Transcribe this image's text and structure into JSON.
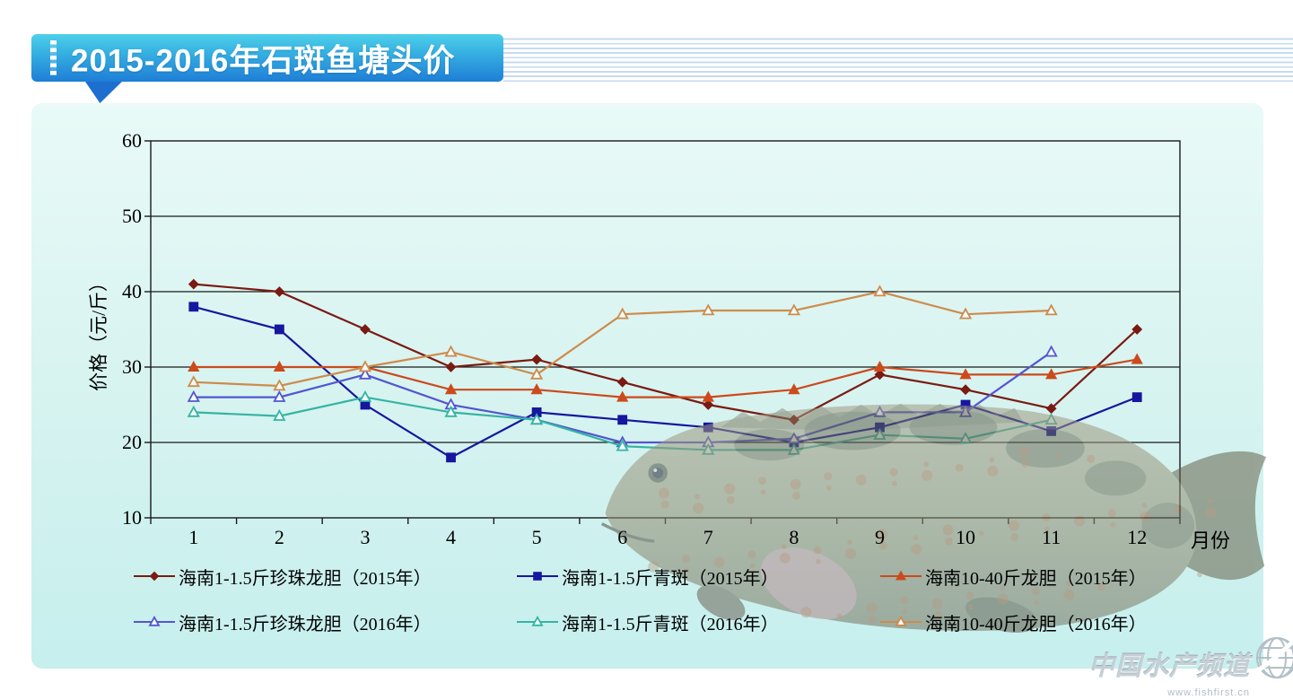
{
  "header": {
    "title": "2015-2016年石斑鱼塘头价"
  },
  "watermark": {
    "brand": "中国水产频道",
    "url": "www.fishfirst.cn"
  },
  "colors": {
    "banner_top": "#4fd0ea",
    "banner_bottom": "#1e7ed6",
    "panel_bg": "#d9f4f1",
    "series_2015_pearl": "#7a1a12",
    "series_2015_green": "#16169e",
    "series_2015_giant": "#cc4a1c",
    "series_2016_pearl": "#5356cf",
    "series_2016_green": "#35b4a4",
    "series_2016_giant": "#ce8b4c"
  },
  "chart_data": {
    "type": "line",
    "title": "",
    "xlabel": "月份",
    "ylabel": "价格（元/斤）",
    "x": [
      1,
      2,
      3,
      4,
      5,
      6,
      7,
      8,
      9,
      10,
      11,
      12
    ],
    "xlim": [
      0,
      12
    ],
    "ylim": [
      10,
      60
    ],
    "yticks": [
      10,
      20,
      30,
      40,
      50,
      60
    ],
    "grid": true,
    "legend_position": "bottom",
    "series": [
      {
        "name": "海南1-1.5斤珍珠龙胆（2015年）",
        "color": "#7a1a12",
        "marker": "diamond",
        "filled": true,
        "values": [
          41,
          40,
          35,
          30,
          31,
          28,
          25,
          23,
          29,
          27,
          24.5,
          35
        ]
      },
      {
        "name": "海南1-1.5斤青斑（2015年）",
        "color": "#16169e",
        "marker": "square",
        "filled": true,
        "values": [
          38,
          35,
          25,
          18,
          24,
          23,
          22,
          20,
          22,
          25,
          21.5,
          26
        ]
      },
      {
        "name": "海南10-40斤龙胆（2015年）",
        "color": "#cc4a1c",
        "marker": "triangle",
        "filled": true,
        "values": [
          30,
          30,
          30,
          27,
          27,
          26,
          26,
          27,
          30,
          29,
          29,
          31
        ]
      },
      {
        "name": "海南1-1.5斤珍珠龙胆（2016年）",
        "color": "#5356cf",
        "marker": "triangle",
        "filled": false,
        "values": [
          26,
          26,
          29,
          25,
          23,
          20,
          20,
          20.5,
          24,
          24,
          32,
          null
        ]
      },
      {
        "name": "海南1-1.5斤青斑（2016年）",
        "color": "#35b4a4",
        "marker": "triangle",
        "filled": false,
        "values": [
          24,
          23.5,
          26,
          24,
          23,
          19.5,
          19,
          19,
          21,
          20.5,
          23,
          null
        ]
      },
      {
        "name": "海南10-40斤龙胆（2016年）",
        "color": "#ce8b4c",
        "marker": "triangle",
        "filled": false,
        "values": [
          28,
          27.5,
          30,
          32,
          29,
          37,
          37.5,
          37.5,
          40,
          37,
          37.5,
          null
        ]
      }
    ]
  }
}
